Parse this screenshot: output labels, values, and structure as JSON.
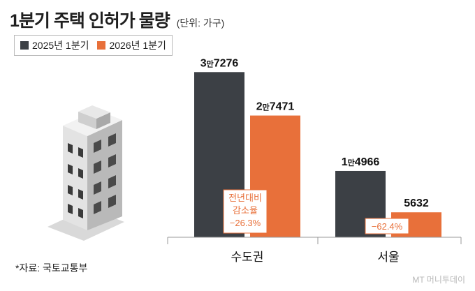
{
  "header": {
    "title": "1분기 주택 인허가 물량",
    "unit": "(단위: 가구)"
  },
  "footer": {
    "source": "*자료: 국토교통부",
    "watermark": "MT 머니투데이"
  },
  "colors": {
    "series_2025": "#3c4045",
    "series_2026": "#e8703a",
    "axis": "#999999"
  },
  "chart_data": {
    "type": "bar",
    "categories": [
      "수도권",
      "서울"
    ],
    "series": [
      {
        "name": "2025년 1분기",
        "values": [
          37276,
          14966
        ],
        "labels": [
          "3만7276",
          "1만4966"
        ]
      },
      {
        "name": "2026년 1분기",
        "values": [
          27471,
          5632
        ],
        "labels": [
          "2만7471",
          "5632"
        ]
      }
    ],
    "annotations": [
      {
        "category": "수도권",
        "lines": [
          "전년대비",
          "감소율",
          "−26.3%"
        ]
      },
      {
        "category": "서울",
        "lines": [
          "−62.4%"
        ]
      }
    ],
    "ylim": [
      0,
      40000
    ],
    "grid": false,
    "legend_position": "top-left"
  }
}
